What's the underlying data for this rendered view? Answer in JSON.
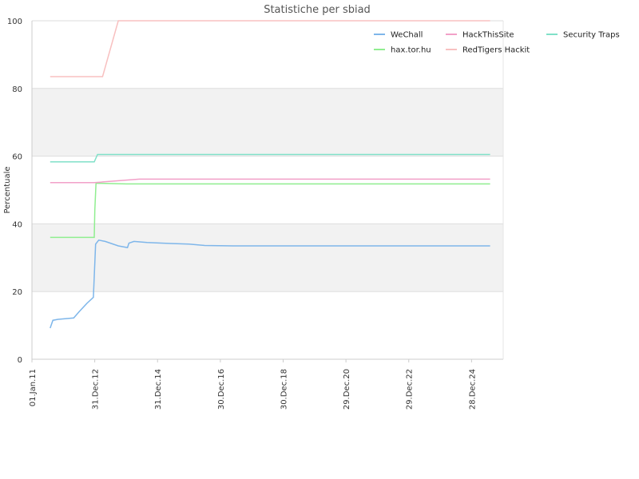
{
  "chart_data": {
    "type": "line",
    "title": "Statistiche per sbiad",
    "xlabel": "",
    "ylabel": "Percentuale",
    "ylim": [
      0,
      100
    ],
    "yticks": [
      "0",
      "20",
      "40",
      "60",
      "80",
      "100"
    ],
    "xticks": [
      "01.Jan.11",
      "31.Dec.12",
      "31.Dec.14",
      "30.Dec.16",
      "30.Dec.18",
      "29.Dec.20",
      "29.Dec.22",
      "28.Dec.24"
    ],
    "xlim": [
      "2011-01-01",
      "2025-12-31"
    ],
    "grid": true,
    "legend_position": "top-right",
    "series": [
      {
        "name": "WeChall",
        "color": "#7eb6ea",
        "points": [
          [
            "2011-08-01",
            9.2
          ],
          [
            "2011-09-01",
            11.5
          ],
          [
            "2011-11-01",
            11.8
          ],
          [
            "2012-02-01",
            12.0
          ],
          [
            "2012-05-01",
            12.2
          ],
          [
            "2012-07-01",
            14.0
          ],
          [
            "2012-10-01",
            16.5
          ],
          [
            "2012-12-15",
            18.3
          ],
          [
            "2013-01-10",
            34.0
          ],
          [
            "2013-02-15",
            35.2
          ],
          [
            "2013-05-01",
            34.8
          ],
          [
            "2013-10-01",
            33.5
          ],
          [
            "2014-01-15",
            33.0
          ],
          [
            "2014-02-01",
            34.3
          ],
          [
            "2014-04-01",
            34.8
          ],
          [
            "2014-09-01",
            34.5
          ],
          [
            "2015-06-01",
            34.2
          ],
          [
            "2016-01-01",
            34.0
          ],
          [
            "2016-07-01",
            33.6
          ],
          [
            "2017-06-01",
            33.5
          ],
          [
            "2025-08-01",
            33.5
          ]
        ]
      },
      {
        "name": "hax.tor.hu",
        "color": "#90ee90",
        "points": [
          [
            "2011-08-01",
            36.0
          ],
          [
            "2012-12-25",
            36.0
          ],
          [
            "2013-01-01",
            44.0
          ],
          [
            "2013-01-15",
            52.0
          ],
          [
            "2014-01-01",
            51.8
          ],
          [
            "2025-08-01",
            51.8
          ]
        ]
      },
      {
        "name": "HackThisSite",
        "color": "#f2a0c8",
        "points": [
          [
            "2011-08-01",
            52.2
          ],
          [
            "2012-12-25",
            52.2
          ],
          [
            "2013-03-01",
            52.3
          ],
          [
            "2013-11-01",
            52.8
          ],
          [
            "2014-06-01",
            53.2
          ],
          [
            "2025-08-01",
            53.2
          ]
        ]
      },
      {
        "name": "RedTigers Hackit",
        "color": "#f8c0c0",
        "points": [
          [
            "2011-08-01",
            83.5
          ],
          [
            "2013-04-01",
            83.5
          ],
          [
            "2013-10-01",
            100.0
          ],
          [
            "2025-08-01",
            100.0
          ]
        ]
      },
      {
        "name": "Security Traps",
        "color": "#80e0c8",
        "points": [
          [
            "2011-08-01",
            58.3
          ],
          [
            "2012-12-25",
            58.3
          ],
          [
            "2013-02-01",
            60.5
          ],
          [
            "2025-08-01",
            60.5
          ]
        ]
      }
    ]
  }
}
